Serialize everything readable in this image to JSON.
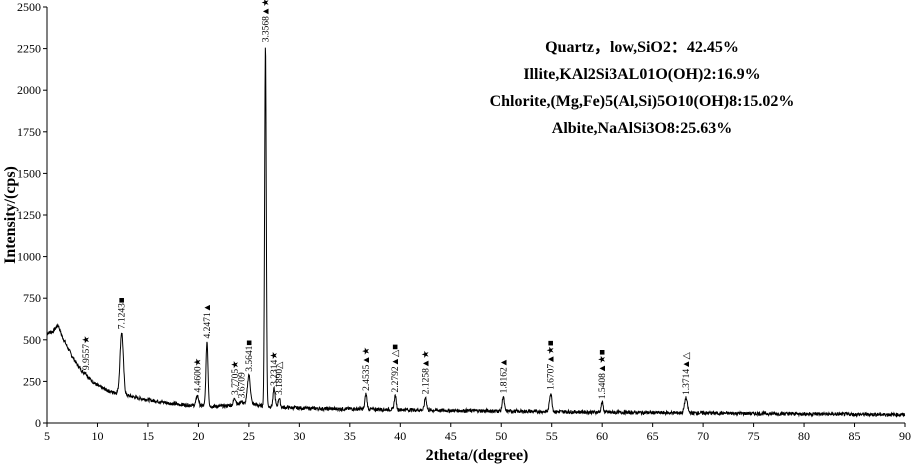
{
  "chart_data": {
    "type": "line",
    "xlabel": "2theta/(degree)",
    "ylabel": "Intensity/(cps)",
    "xlim": [
      5,
      90
    ],
    "ylim": [
      0,
      2500
    ],
    "x_ticks": [
      5,
      10,
      15,
      20,
      25,
      30,
      35,
      40,
      45,
      50,
      55,
      60,
      65,
      70,
      75,
      80,
      85,
      90
    ],
    "y_ticks": [
      0,
      250,
      500,
      750,
      1000,
      1250,
      1500,
      1750,
      2000,
      2250,
      2500
    ],
    "grid": false,
    "line_color": "#000000",
    "composition": [
      "Quartz，low,SiO2：42.45%",
      "Illite,KAl2Si3AL01O(OH)2:16.9%",
      "Chlorite,(Mg,Fe)5(Al,Si)5O10(OH)8:15.02%",
      "Albite,NaAlSi3O8:25.63%"
    ],
    "baseline": [
      [
        5,
        540
      ],
      [
        5.6,
        550
      ],
      [
        6.1,
        590
      ],
      [
        6.5,
        520
      ],
      [
        7,
        460
      ],
      [
        7.5,
        400
      ],
      [
        8,
        350
      ],
      [
        8.5,
        310
      ],
      [
        9,
        280
      ],
      [
        9.5,
        250
      ],
      [
        10,
        225
      ],
      [
        10.5,
        210
      ],
      [
        11,
        195
      ],
      [
        11.5,
        185
      ],
      [
        12,
        180
      ],
      [
        13,
        165
      ],
      [
        14,
        150
      ],
      [
        15,
        140
      ],
      [
        16,
        130
      ],
      [
        17,
        120
      ],
      [
        18,
        112
      ],
      [
        19,
        108
      ],
      [
        20,
        105
      ],
      [
        21,
        100
      ],
      [
        22,
        100
      ],
      [
        23,
        105
      ],
      [
        24,
        112
      ],
      [
        25,
        120
      ],
      [
        26,
        105
      ],
      [
        28,
        95
      ],
      [
        30,
        90
      ],
      [
        33,
        85
      ],
      [
        35,
        85
      ],
      [
        40,
        80
      ],
      [
        45,
        75
      ],
      [
        50,
        72
      ],
      [
        55,
        68
      ],
      [
        60,
        65
      ],
      [
        65,
        62
      ],
      [
        70,
        60
      ],
      [
        75,
        57
      ],
      [
        80,
        55
      ],
      [
        85,
        52
      ],
      [
        90,
        50
      ]
    ],
    "peaks": [
      {
        "x": 8.85,
        "y": 300,
        "w": 0.12,
        "label": "9.9557",
        "marker": "★"
      },
      {
        "x": 12.4,
        "y": 545,
        "w": 0.16,
        "label": "7.1243",
        "marker": "■"
      },
      {
        "x": 19.9,
        "y": 165,
        "w": 0.12,
        "label": "4.4600",
        "marker": "★"
      },
      {
        "x": 20.85,
        "y": 490,
        "w": 0.1,
        "label": "4.2471",
        "marker": "▲"
      },
      {
        "x": 23.6,
        "y": 150,
        "w": 0.12,
        "label": "3.7705",
        "marker": "★"
      },
      {
        "x": 24.25,
        "y": 130,
        "w": 0.12,
        "label": "3.6709",
        "marker": ""
      },
      {
        "x": 25.0,
        "y": 290,
        "w": 0.14,
        "label": "3.5641",
        "marker": "■"
      },
      {
        "x": 26.64,
        "y": 2270,
        "w": 0.08,
        "label": "3.3568",
        "marker": "▲★"
      },
      {
        "x": 27.5,
        "y": 205,
        "w": 0.1,
        "label": "3.2314",
        "marker": "★"
      },
      {
        "x": 28.0,
        "y": 150,
        "w": 0.1,
        "label": "3.1890",
        "marker": "△"
      },
      {
        "x": 36.6,
        "y": 175,
        "w": 0.1,
        "label": "2.4535",
        "marker": "▲★"
      },
      {
        "x": 39.5,
        "y": 165,
        "w": 0.1,
        "label": "2.2792",
        "marker": "▲△■"
      },
      {
        "x": 42.5,
        "y": 155,
        "w": 0.1,
        "label": "2.1258",
        "marker": "▲★"
      },
      {
        "x": 50.2,
        "y": 160,
        "w": 0.1,
        "label": "1.8162",
        "marker": "▲"
      },
      {
        "x": 54.9,
        "y": 180,
        "w": 0.12,
        "label": "1.6707",
        "marker": "▲★■"
      },
      {
        "x": 60.0,
        "y": 125,
        "w": 0.1,
        "label": "1.5408",
        "marker": "▲★■"
      },
      {
        "x": 68.3,
        "y": 150,
        "w": 0.14,
        "label": "1.3714",
        "marker": "▲△"
      }
    ]
  }
}
